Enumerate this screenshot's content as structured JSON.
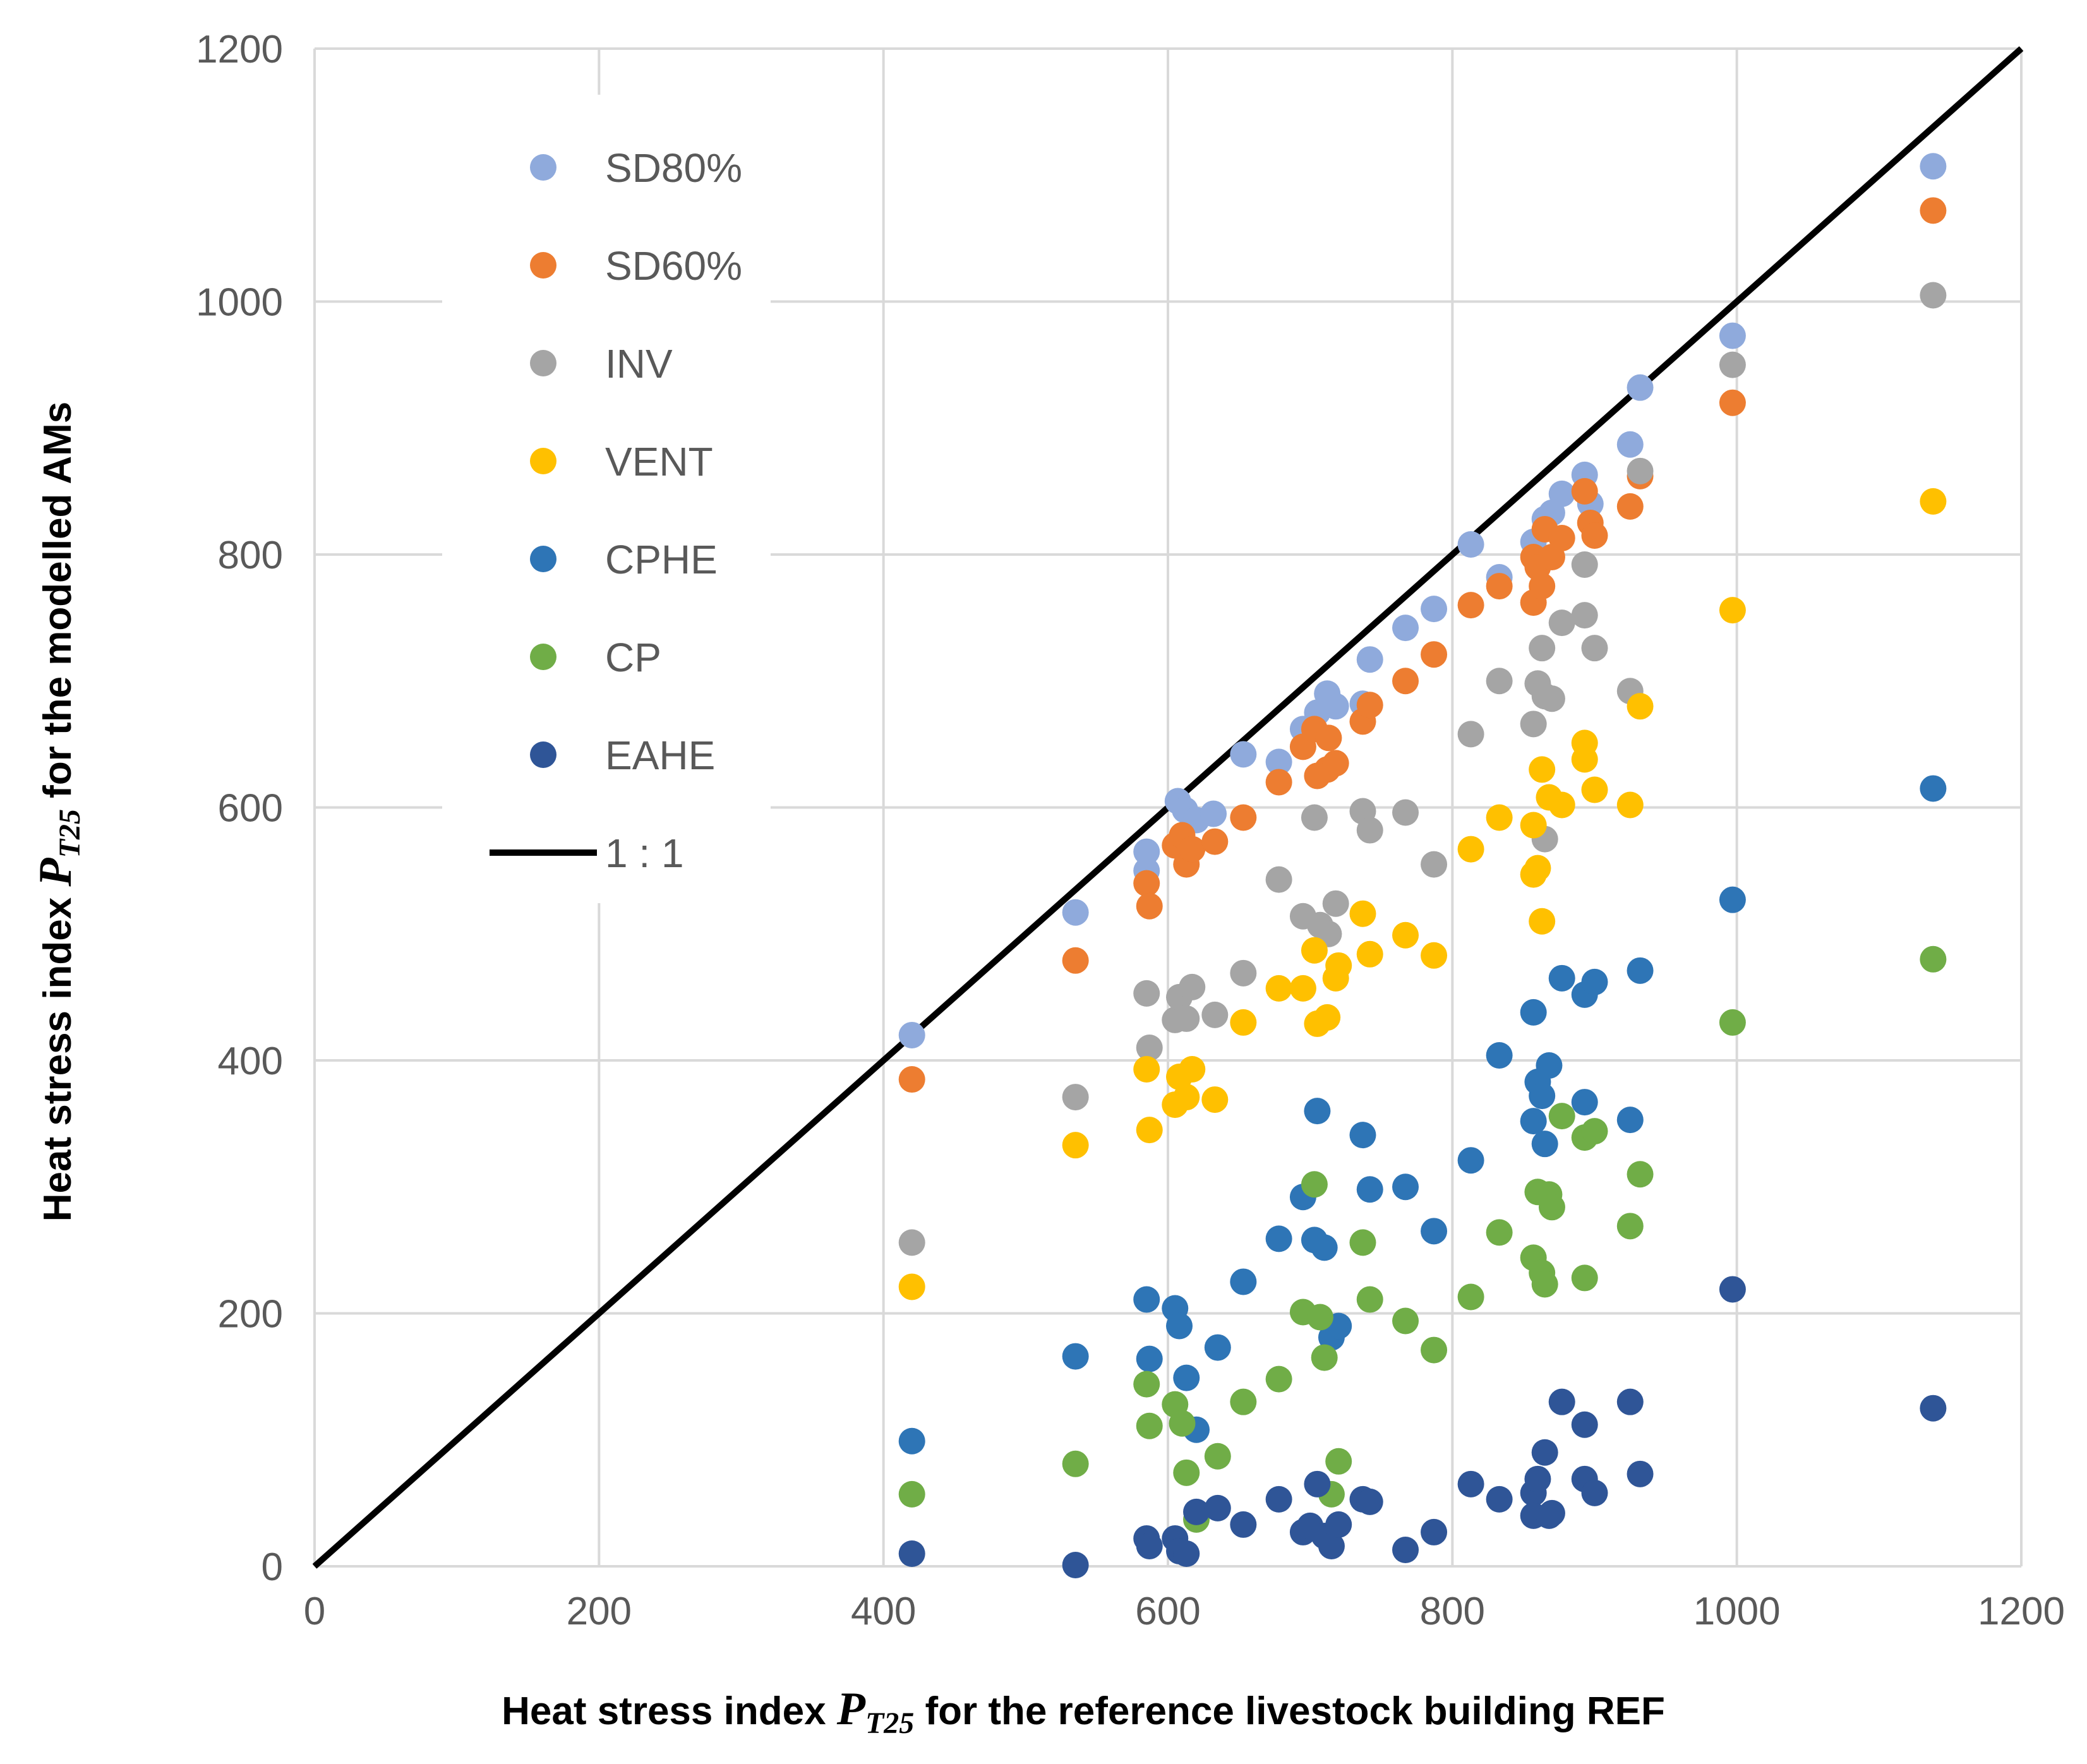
{
  "chart_data": {
    "type": "scatter",
    "xlabel": {
      "prefix": "Heat stress index ",
      "symbol": "P",
      "subscript": "T25",
      "suffix": " for the reference livestock building REF"
    },
    "ylabel": {
      "prefix": "Heat stress index  ",
      "symbol": "P",
      "subscript": "T25",
      "suffix": " for the modelled AMs"
    },
    "xlim": [
      0,
      1200
    ],
    "ylim": [
      0,
      1200
    ],
    "xticks": [
      0,
      200,
      400,
      600,
      800,
      1000,
      1200
    ],
    "yticks": [
      0,
      200,
      400,
      600,
      800,
      1000,
      1200
    ],
    "grid": true,
    "legend_position": "top-left",
    "reference_line": {
      "name": "1 : 1",
      "color": "#000000",
      "points": [
        [
          0,
          0
        ],
        [
          1200,
          1200
        ]
      ]
    },
    "series": [
      {
        "name": "SD80%",
        "color": "#8faadc",
        "points": [
          [
            420,
            420
          ],
          [
            535,
            517
          ],
          [
            585,
            565
          ],
          [
            585,
            550
          ],
          [
            607,
            605
          ],
          [
            612,
            598
          ],
          [
            620,
            590
          ],
          [
            632,
            595
          ],
          [
            653,
            642
          ],
          [
            678,
            636
          ],
          [
            695,
            662
          ],
          [
            705,
            675
          ],
          [
            712,
            690
          ],
          [
            718,
            680
          ],
          [
            737,
            682
          ],
          [
            742,
            717
          ],
          [
            767,
            742
          ],
          [
            787,
            757
          ],
          [
            813,
            808
          ],
          [
            833,
            782
          ],
          [
            857,
            810
          ],
          [
            860,
            795
          ],
          [
            865,
            828
          ],
          [
            870,
            833
          ],
          [
            877,
            848
          ],
          [
            893,
            863
          ],
          [
            897,
            840
          ],
          [
            925,
            887
          ],
          [
            932,
            932
          ],
          [
            997,
            973
          ],
          [
            1138,
            1107
          ]
        ]
      },
      {
        "name": "SD60%",
        "color": "#ed7d31",
        "points": [
          [
            420,
            385
          ],
          [
            535,
            479
          ],
          [
            585,
            540
          ],
          [
            587,
            522
          ],
          [
            605,
            570
          ],
          [
            610,
            578
          ],
          [
            613,
            555
          ],
          [
            617,
            567
          ],
          [
            633,
            573
          ],
          [
            653,
            592
          ],
          [
            678,
            620
          ],
          [
            695,
            648
          ],
          [
            703,
            662
          ],
          [
            705,
            625
          ],
          [
            712,
            630
          ],
          [
            713,
            655
          ],
          [
            718,
            635
          ],
          [
            737,
            668
          ],
          [
            742,
            681
          ],
          [
            767,
            700
          ],
          [
            787,
            721
          ],
          [
            813,
            760
          ],
          [
            833,
            775
          ],
          [
            857,
            762
          ],
          [
            857,
            798
          ],
          [
            860,
            790
          ],
          [
            863,
            775
          ],
          [
            865,
            820
          ],
          [
            870,
            798
          ],
          [
            877,
            813
          ],
          [
            893,
            850
          ],
          [
            897,
            825
          ],
          [
            900,
            815
          ],
          [
            925,
            838
          ],
          [
            932,
            862
          ],
          [
            997,
            920
          ],
          [
            1138,
            1072
          ]
        ]
      },
      {
        "name": "INV",
        "color": "#a5a5a5",
        "points": [
          [
            420,
            256
          ],
          [
            535,
            371
          ],
          [
            585,
            453
          ],
          [
            587,
            410
          ],
          [
            605,
            432
          ],
          [
            608,
            450
          ],
          [
            613,
            433
          ],
          [
            617,
            458
          ],
          [
            633,
            436
          ],
          [
            653,
            469
          ],
          [
            678,
            543
          ],
          [
            695,
            514
          ],
          [
            703,
            592
          ],
          [
            707,
            507
          ],
          [
            713,
            500
          ],
          [
            718,
            524
          ],
          [
            737,
            597
          ],
          [
            742,
            582
          ],
          [
            767,
            596
          ],
          [
            787,
            555
          ],
          [
            813,
            658
          ],
          [
            833,
            700
          ],
          [
            857,
            666
          ],
          [
            860,
            698
          ],
          [
            863,
            726
          ],
          [
            865,
            575
          ],
          [
            865,
            688
          ],
          [
            870,
            686
          ],
          [
            877,
            746
          ],
          [
            893,
            752
          ],
          [
            893,
            792
          ],
          [
            900,
            726
          ],
          [
            925,
            692
          ],
          [
            932,
            866
          ],
          [
            997,
            950
          ],
          [
            1138,
            1005
          ]
        ]
      },
      {
        "name": "VENT",
        "color": "#ffc000",
        "points": [
          [
            420,
            221
          ],
          [
            535,
            333
          ],
          [
            585,
            393
          ],
          [
            587,
            345
          ],
          [
            605,
            365
          ],
          [
            608,
            387
          ],
          [
            613,
            371
          ],
          [
            617,
            393
          ],
          [
            633,
            369
          ],
          [
            653,
            430
          ],
          [
            678,
            457
          ],
          [
            695,
            457
          ],
          [
            703,
            487
          ],
          [
            705,
            429
          ],
          [
            712,
            434
          ],
          [
            718,
            465
          ],
          [
            720,
            475
          ],
          [
            737,
            516
          ],
          [
            742,
            484
          ],
          [
            767,
            499
          ],
          [
            787,
            483
          ],
          [
            813,
            567
          ],
          [
            833,
            592
          ],
          [
            857,
            547
          ],
          [
            857,
            586
          ],
          [
            860,
            552
          ],
          [
            863,
            510
          ],
          [
            863,
            630
          ],
          [
            868,
            608
          ],
          [
            877,
            602
          ],
          [
            893,
            638
          ],
          [
            893,
            651
          ],
          [
            900,
            614
          ],
          [
            925,
            602
          ],
          [
            932,
            680
          ],
          [
            997,
            756
          ],
          [
            1138,
            842
          ]
        ]
      },
      {
        "name": "CPHE",
        "color": "#2e75b6",
        "points": [
          [
            420,
            99
          ],
          [
            535,
            166
          ],
          [
            585,
            211
          ],
          [
            587,
            164
          ],
          [
            605,
            204
          ],
          [
            608,
            190
          ],
          [
            613,
            149
          ],
          [
            620,
            108
          ],
          [
            635,
            173
          ],
          [
            653,
            225
          ],
          [
            678,
            259
          ],
          [
            695,
            292
          ],
          [
            703,
            258
          ],
          [
            705,
            360
          ],
          [
            710,
            252
          ],
          [
            715,
            181
          ],
          [
            720,
            190
          ],
          [
            737,
            341
          ],
          [
            742,
            298
          ],
          [
            767,
            300
          ],
          [
            787,
            265
          ],
          [
            813,
            321
          ],
          [
            833,
            404
          ],
          [
            857,
            352
          ],
          [
            857,
            438
          ],
          [
            860,
            383
          ],
          [
            863,
            372
          ],
          [
            865,
            334
          ],
          [
            868,
            396
          ],
          [
            877,
            465
          ],
          [
            893,
            367
          ],
          [
            893,
            452
          ],
          [
            900,
            462
          ],
          [
            925,
            353
          ],
          [
            932,
            471
          ],
          [
            997,
            527
          ],
          [
            1138,
            615
          ]
        ]
      },
      {
        "name": "CP",
        "color": "#70ad47",
        "points": [
          [
            420,
            57
          ],
          [
            535,
            81
          ],
          [
            585,
            144
          ],
          [
            587,
            111
          ],
          [
            605,
            128
          ],
          [
            610,
            113
          ],
          [
            613,
            74
          ],
          [
            620,
            37
          ],
          [
            635,
            87
          ],
          [
            653,
            130
          ],
          [
            678,
            148
          ],
          [
            695,
            201
          ],
          [
            703,
            302
          ],
          [
            707,
            197
          ],
          [
            710,
            165
          ],
          [
            715,
            57
          ],
          [
            720,
            83
          ],
          [
            737,
            256
          ],
          [
            742,
            211
          ],
          [
            767,
            194
          ],
          [
            787,
            171
          ],
          [
            813,
            213
          ],
          [
            833,
            264
          ],
          [
            857,
            244
          ],
          [
            860,
            296
          ],
          [
            863,
            232
          ],
          [
            865,
            223
          ],
          [
            868,
            294
          ],
          [
            870,
            284
          ],
          [
            877,
            356
          ],
          [
            893,
            228
          ],
          [
            893,
            339
          ],
          [
            900,
            344
          ],
          [
            925,
            269
          ],
          [
            932,
            310
          ],
          [
            997,
            430
          ],
          [
            1138,
            480
          ]
        ]
      },
      {
        "name": "EAHE",
        "color": "#2f5597",
        "points": [
          [
            420,
            10
          ],
          [
            535,
            1
          ],
          [
            585,
            22
          ],
          [
            587,
            16
          ],
          [
            605,
            22
          ],
          [
            608,
            12
          ],
          [
            613,
            10
          ],
          [
            620,
            43
          ],
          [
            635,
            46
          ],
          [
            653,
            33
          ],
          [
            678,
            53
          ],
          [
            695,
            27
          ],
          [
            700,
            32
          ],
          [
            705,
            65
          ],
          [
            710,
            24
          ],
          [
            715,
            16
          ],
          [
            720,
            33
          ],
          [
            737,
            53
          ],
          [
            742,
            51
          ],
          [
            767,
            13
          ],
          [
            787,
            27
          ],
          [
            813,
            65
          ],
          [
            833,
            53
          ],
          [
            857,
            58
          ],
          [
            857,
            40
          ],
          [
            860,
            69
          ],
          [
            865,
            90
          ],
          [
            868,
            40
          ],
          [
            870,
            42
          ],
          [
            877,
            130
          ],
          [
            893,
            112
          ],
          [
            893,
            69
          ],
          [
            900,
            58
          ],
          [
            925,
            130
          ],
          [
            932,
            73
          ],
          [
            997,
            219
          ],
          [
            1138,
            125
          ]
        ]
      }
    ]
  }
}
